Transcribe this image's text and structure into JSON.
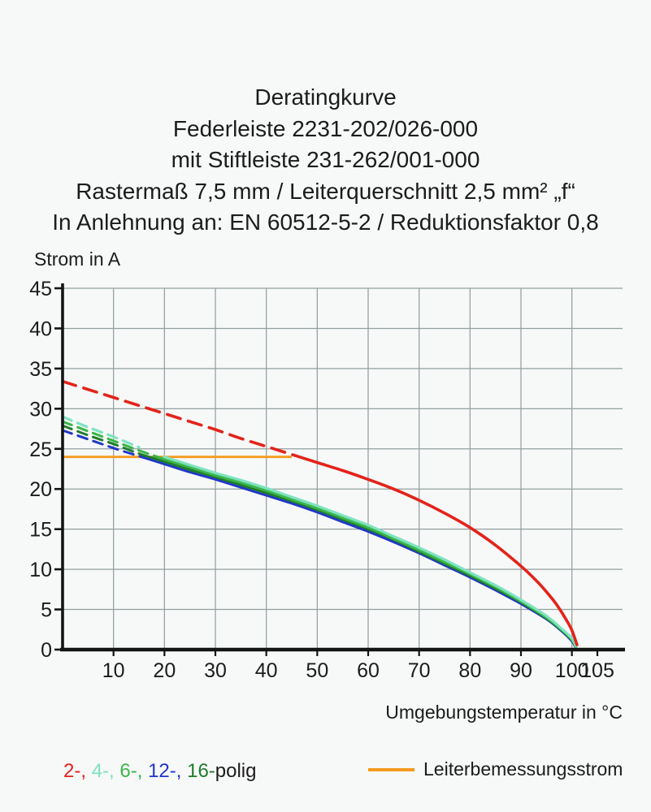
{
  "title": {
    "lines": [
      "Deratingkurve",
      "Federleiste 2231-202/026-000",
      "mit Stiftleiste 231-262/001-000",
      "Rastermaß 7,5 mm / Leiterquerschnitt 2,5 mm² „f“",
      "In Anlehnung an: EN 60512-5-2 / Reduktionsfaktor 0,8"
    ]
  },
  "legend": {
    "poles": [
      {
        "text": "2-, ",
        "color": "#e3231a"
      },
      {
        "text": "4-, ",
        "color": "#7de3c0"
      },
      {
        "text": "6-, ",
        "color": "#3cb649"
      },
      {
        "text": "12-, ",
        "color": "#2038c8"
      },
      {
        "text": "16-",
        "color": "#1f7d2c"
      }
    ],
    "suffix": "polig",
    "suffix_color": "#1c1c1c",
    "rated": {
      "label": "Leiterbemessungsstrom",
      "color": "#f59b20"
    }
  },
  "chart_data": {
    "type": "line",
    "title": "Deratingkurve",
    "xlabel": "Umgebungstemperatur in °C",
    "ylabel": "Strom in A",
    "xlim": [
      0,
      105
    ],
    "ylim": [
      0,
      45
    ],
    "x_ticks": [
      10,
      20,
      30,
      40,
      50,
      60,
      70,
      80,
      90,
      100,
      105
    ],
    "y_ticks": [
      0,
      5,
      10,
      15,
      20,
      25,
      30,
      35,
      40,
      45
    ],
    "x_gridlines": [
      10,
      20,
      30,
      40,
      50,
      60,
      70,
      80,
      90,
      100
    ],
    "y_gridlines": [
      5,
      10,
      15,
      20,
      25,
      30,
      35,
      40,
      45
    ],
    "grid": true,
    "legend_position": "bottom",
    "axis_color": "#141414",
    "grid_color": "#93a0a0",
    "series": [
      {
        "name": "12-polig",
        "color": "#2038c8",
        "width": 3.0,
        "dash_until": 15.5,
        "points": [
          [
            0,
            27.3
          ],
          [
            5,
            26.2
          ],
          [
            10,
            25.1
          ],
          [
            15,
            24.1
          ],
          [
            20,
            23.1
          ],
          [
            25,
            22.1
          ],
          [
            30,
            21.2
          ],
          [
            35,
            20.2
          ],
          [
            40,
            19.2
          ],
          [
            45,
            18.2
          ],
          [
            50,
            17.1
          ],
          [
            55,
            15.9
          ],
          [
            60,
            14.7
          ],
          [
            65,
            13.4
          ],
          [
            70,
            12.0
          ],
          [
            75,
            10.5
          ],
          [
            80,
            9.0
          ],
          [
            85,
            7.4
          ],
          [
            90,
            5.7
          ],
          [
            95,
            3.8
          ],
          [
            98,
            2.3
          ],
          [
            100,
            1.05
          ],
          [
            100.8,
            0.2
          ]
        ]
      },
      {
        "name": "16-polig",
        "color": "#1f7d2c",
        "width": 3.0,
        "dash_until": 17,
        "points": [
          [
            0,
            27.9
          ],
          [
            5,
            26.7
          ],
          [
            10,
            25.6
          ],
          [
            15,
            24.4
          ],
          [
            20,
            23.4
          ],
          [
            25,
            22.4
          ],
          [
            30,
            21.5
          ],
          [
            35,
            20.5
          ],
          [
            40,
            19.5
          ],
          [
            45,
            18.5
          ],
          [
            50,
            17.4
          ],
          [
            55,
            16.2
          ],
          [
            60,
            15.0
          ],
          [
            65,
            13.7
          ],
          [
            70,
            12.2
          ],
          [
            75,
            10.7
          ],
          [
            80,
            9.2
          ],
          [
            85,
            7.6
          ],
          [
            90,
            5.9
          ],
          [
            95,
            3.9
          ],
          [
            98,
            2.4
          ],
          [
            100,
            1.15
          ],
          [
            100.8,
            0.25
          ]
        ]
      },
      {
        "name": "6-polig",
        "color": "#3cb649",
        "width": 3.1,
        "dash_until": 18,
        "points": [
          [
            0,
            28.4
          ],
          [
            5,
            27.2
          ],
          [
            10,
            26.0
          ],
          [
            15,
            24.8
          ],
          [
            20,
            23.7
          ],
          [
            25,
            22.7
          ],
          [
            30,
            21.7
          ],
          [
            35,
            20.8
          ],
          [
            40,
            19.8
          ],
          [
            45,
            18.7
          ],
          [
            50,
            17.6
          ],
          [
            55,
            16.4
          ],
          [
            60,
            15.2
          ],
          [
            65,
            13.8
          ],
          [
            70,
            12.4
          ],
          [
            75,
            10.9
          ],
          [
            80,
            9.4
          ],
          [
            85,
            7.8
          ],
          [
            90,
            6.0
          ],
          [
            95,
            4.0
          ],
          [
            98,
            2.5
          ],
          [
            100,
            1.25
          ],
          [
            100.8,
            0.3
          ]
        ]
      },
      {
        "name": "4-polig",
        "color": "#7de3c0",
        "width": 3.2,
        "dash_until": 20,
        "points": [
          [
            0,
            29.0
          ],
          [
            5,
            27.7
          ],
          [
            10,
            26.5
          ],
          [
            15,
            25.2
          ],
          [
            20,
            24.0
          ],
          [
            25,
            23.0
          ],
          [
            30,
            22.0
          ],
          [
            35,
            21.1
          ],
          [
            40,
            20.1
          ],
          [
            45,
            19.0
          ],
          [
            50,
            17.9
          ],
          [
            55,
            16.7
          ],
          [
            60,
            15.5
          ],
          [
            65,
            14.1
          ],
          [
            70,
            12.7
          ],
          [
            75,
            11.2
          ],
          [
            80,
            9.6
          ],
          [
            85,
            8.0
          ],
          [
            90,
            6.2
          ],
          [
            95,
            4.2
          ],
          [
            98,
            2.6
          ],
          [
            100,
            1.4
          ],
          [
            100.8,
            0.4
          ]
        ]
      },
      {
        "name": "2-polig",
        "color": "#e3231a",
        "width": 3.6,
        "dash_until": 46,
        "points": [
          [
            0,
            33.4
          ],
          [
            5,
            32.4
          ],
          [
            10,
            31.4
          ],
          [
            15,
            30.4
          ],
          [
            20,
            29.4
          ],
          [
            25,
            28.4
          ],
          [
            30,
            27.4
          ],
          [
            35,
            26.3
          ],
          [
            40,
            25.3
          ],
          [
            45,
            24.3
          ],
          [
            50,
            23.3
          ],
          [
            55,
            22.3
          ],
          [
            60,
            21.2
          ],
          [
            65,
            20.0
          ],
          [
            70,
            18.6
          ],
          [
            75,
            17.0
          ],
          [
            80,
            15.2
          ],
          [
            85,
            13.0
          ],
          [
            90,
            10.4
          ],
          [
            93,
            8.6
          ],
          [
            95,
            7.2
          ],
          [
            97,
            5.6
          ],
          [
            99,
            3.6
          ],
          [
            100,
            2.4
          ],
          [
            101,
            0.6
          ]
        ]
      }
    ],
    "rated_line": {
      "name": "Leiterbemessungsstrom",
      "color": "#f59b20",
      "value": 24,
      "x_range": [
        0,
        45
      ],
      "width": 2.8
    }
  }
}
